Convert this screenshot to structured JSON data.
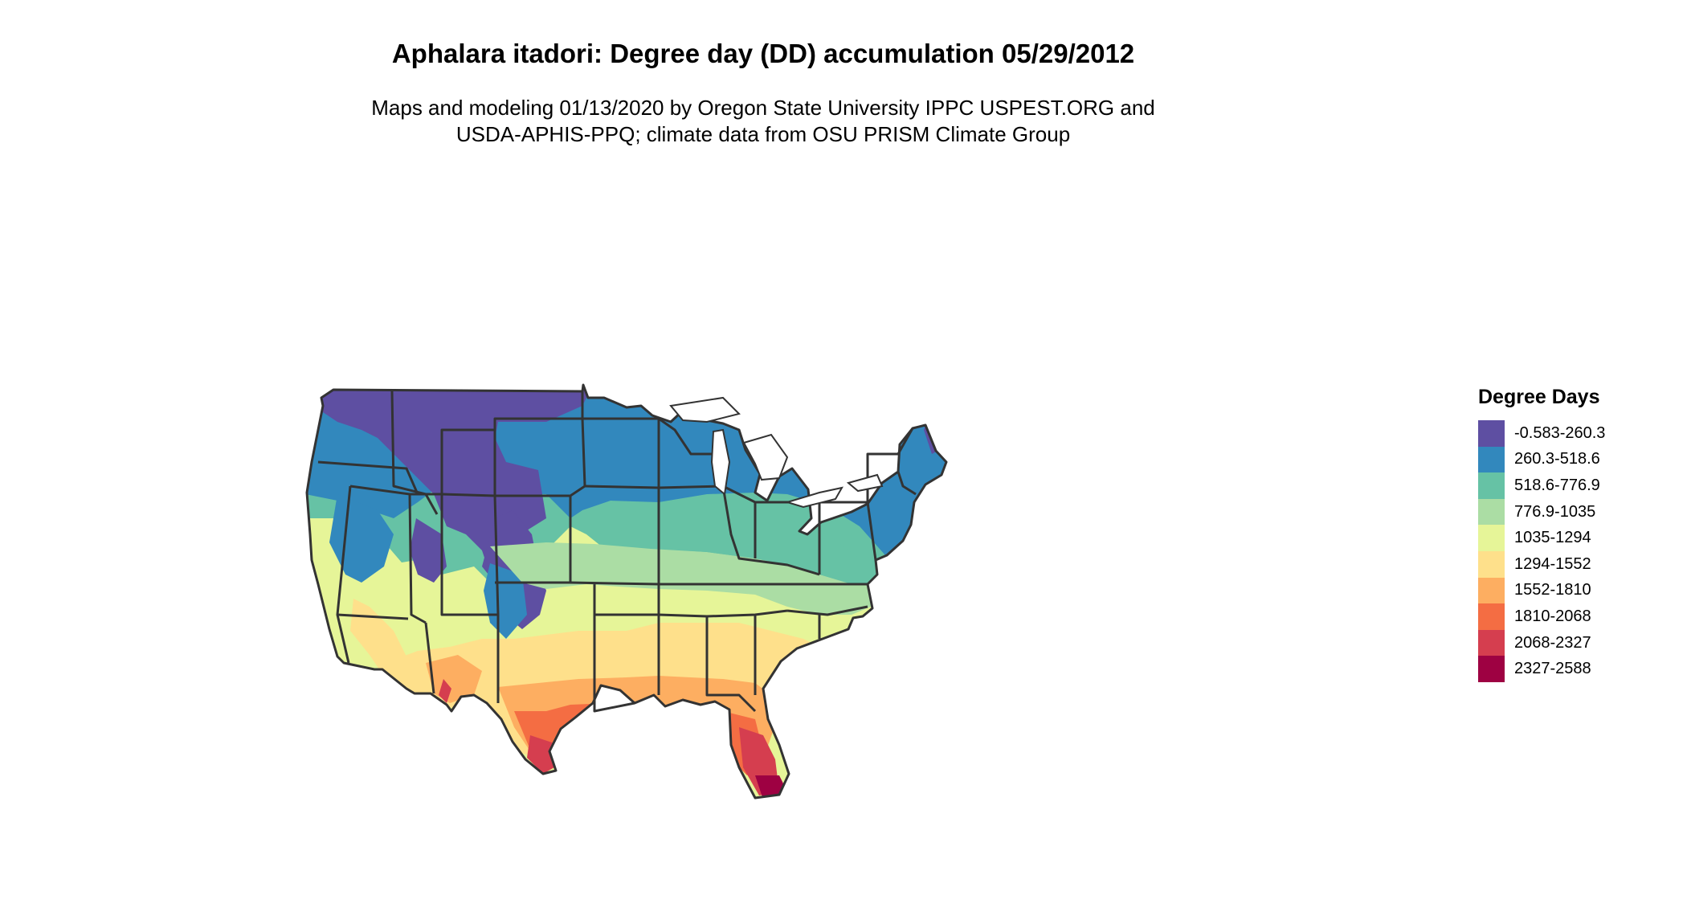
{
  "header": {
    "title": "Aphalara itadori: Degree day (DD) accumulation 05/29/2012",
    "subtitle_line1": "Maps and modeling 01/13/2020 by Oregon State University IPPC USPEST.ORG and",
    "subtitle_line2": "USDA-APHIS-PPQ; climate data from OSU PRISM Climate Group"
  },
  "legend": {
    "title": "Degree Days",
    "items": [
      {
        "label": "-0.583-260.3",
        "color": "#5E4FA2"
      },
      {
        "label": "260.3-518.6",
        "color": "#3288BD"
      },
      {
        "label": "518.6-776.9",
        "color": "#66C2A5"
      },
      {
        "label": "776.9-1035",
        "color": "#ABDDA4"
      },
      {
        "label": "1035-1294",
        "color": "#E6F598"
      },
      {
        "label": "1294-1552",
        "color": "#FEE08B"
      },
      {
        "label": "1552-1810",
        "color": "#FDAE61"
      },
      {
        "label": "1810-2068",
        "color": "#F46D43"
      },
      {
        "label": "2068-2327",
        "color": "#D53E4F"
      },
      {
        "label": "2327-2588",
        "color": "#9E0142"
      }
    ]
  },
  "map": {
    "region": "contiguous-united-states",
    "boundary_color": "#333333"
  }
}
